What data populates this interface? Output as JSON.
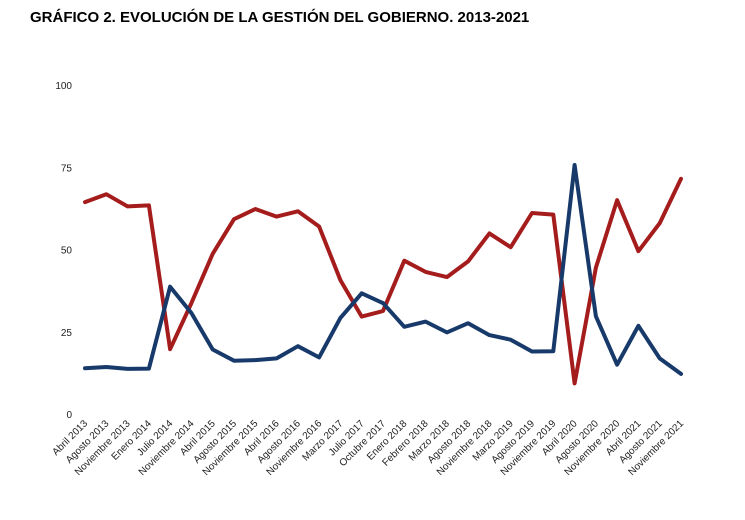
{
  "title": "GRÁFICO 2. EVOLUCIÓN DE LA GESTIÓN DEL GOBIERNO. 2013-2021",
  "chart_data": {
    "type": "line",
    "title": "GRÁFICO 2. EVOLUCIÓN DE LA GESTIÓN DEL GOBIERNO. 2013-2021",
    "xlabel": "",
    "ylabel": "",
    "ylim": [
      0,
      100
    ],
    "yticks": [
      0,
      25,
      50,
      75,
      100
    ],
    "grid": false,
    "legend": "none",
    "categories": [
      "Abril 2013",
      "Agosto 2013",
      "Noviembre 2013",
      "Enero 2014",
      "Julio 2014",
      "Noviembre 2014",
      "Abril 2015",
      "Agosto 2015",
      "Noviembre 2015",
      "Abril 2016",
      "Agosto 2016",
      "Noviembre 2016",
      "Marzo 2017",
      "Julio 2017",
      "Octubre 2017",
      "Enero 2018",
      "Febrero 2018",
      "Marzo 2018",
      "Agosto 2018",
      "Noviembre 2018",
      "Marzo 2019",
      "Agosto 2019",
      "Noviembre 2019",
      "Abril 2020",
      "Agosto 2020",
      "Noviembre 2020",
      "Abril 2021",
      "Agosto 2021",
      "Noviembre 2021"
    ],
    "series": [
      {
        "color": "#a51c1c",
        "values": [
          64.7,
          67.1,
          63.4,
          63.7,
          20.0,
          34.0,
          49.0,
          59.5,
          62.6,
          60.3,
          61.9,
          57.3,
          41.0,
          29.9,
          31.6,
          46.9,
          43.5,
          41.9,
          46.7,
          55.2,
          51.0,
          61.4,
          60.9,
          9.6,
          44.8,
          65.3,
          49.8,
          58.3,
          71.8
        ]
      },
      {
        "color": "#173a6b",
        "values": [
          14.2,
          14.6,
          14.0,
          14.1,
          39.0,
          31.0,
          19.9,
          16.5,
          16.7,
          17.2,
          20.9,
          17.5,
          29.5,
          37.0,
          34.0,
          26.8,
          28.4,
          25.1,
          27.9,
          24.3,
          22.9,
          19.3,
          19.4,
          76.0,
          30.0,
          15.3,
          27.1,
          17.2,
          12.5
        ]
      }
    ]
  }
}
